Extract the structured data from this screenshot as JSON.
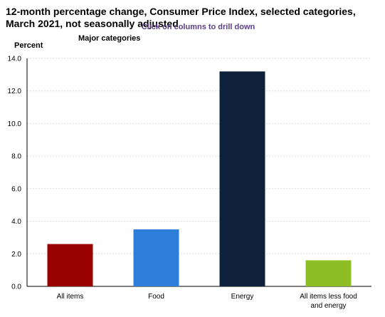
{
  "chart_data": {
    "type": "bar",
    "title": "12-month percentage change, Consumer Price Index, selected categories, March 2021, not seasonally adjusted",
    "subtitle": "Major categories",
    "drill_hint": "Click on columns to drill down",
    "ylabel": "Percent",
    "xlabel": "",
    "ylim": [
      0,
      14
    ],
    "yticks": [
      "0.0",
      "2.0",
      "4.0",
      "6.0",
      "8.0",
      "10.0",
      "12.0",
      "14.0"
    ],
    "grid": true,
    "categories": [
      "All items",
      "Food",
      "Energy",
      "All items less food and energy"
    ],
    "values": [
      2.6,
      3.5,
      13.2,
      1.6
    ],
    "colors": [
      "#990000",
      "#2e7fd9",
      "#0f213a",
      "#8dbf24"
    ]
  }
}
